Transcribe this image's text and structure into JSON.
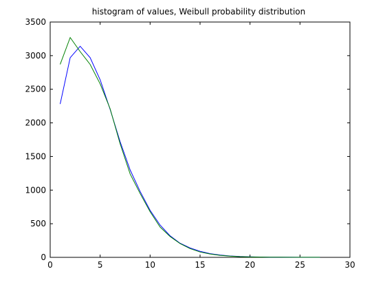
{
  "chart_data": {
    "type": "line",
    "title": "histogram of values, Weibull probability distribution",
    "xlabel": "",
    "ylabel": "",
    "xlim": [
      0,
      30
    ],
    "ylim": [
      0,
      3500
    ],
    "x_ticks": [
      0,
      5,
      10,
      15,
      20,
      25,
      30
    ],
    "y_ticks": [
      0,
      500,
      1000,
      1500,
      2000,
      2500,
      3000,
      3500
    ],
    "grid": false,
    "legend": "none",
    "series": [
      {
        "color": "#0000ff",
        "x": [
          1,
          2,
          3,
          4,
          5,
          6,
          7,
          8,
          9,
          10,
          11,
          12,
          13,
          14,
          15,
          16,
          17,
          18,
          19,
          20,
          21,
          22,
          23,
          24,
          25,
          26,
          27
        ],
        "y": [
          2280,
          2970,
          3140,
          2970,
          2640,
          2200,
          1720,
          1300,
          980,
          700,
          480,
          320,
          210,
          140,
          90,
          55,
          35,
          20,
          12,
          8,
          5,
          3,
          2,
          2,
          1,
          1,
          1
        ]
      },
      {
        "color": "#008000",
        "x": [
          1,
          2,
          3,
          4,
          5,
          6,
          7,
          8,
          9,
          10,
          11,
          12,
          13,
          14,
          15,
          16,
          17,
          18,
          19,
          20,
          21,
          22,
          23,
          24,
          25,
          26,
          27
        ],
        "y": [
          2870,
          3270,
          3060,
          2870,
          2580,
          2210,
          1690,
          1240,
          950,
          680,
          450,
          310,
          205,
          130,
          80,
          50,
          30,
          18,
          10,
          6,
          4,
          3,
          2,
          1,
          1,
          1,
          1
        ]
      }
    ]
  }
}
